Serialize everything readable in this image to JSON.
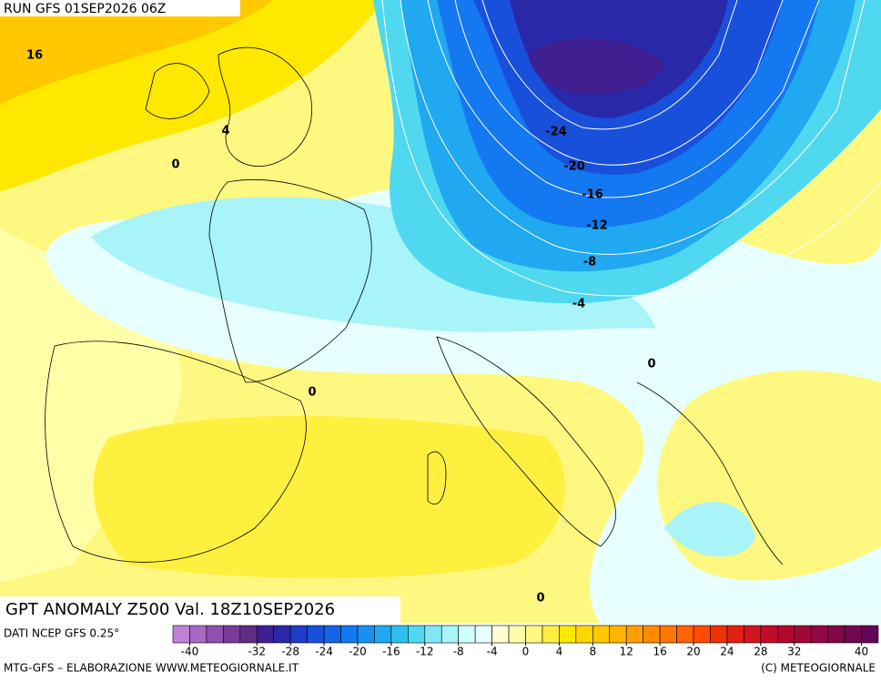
{
  "header": {
    "run": "RUN GFS 01SEP2026 06Z"
  },
  "map": {
    "title": "GPT ANOMALY Z500 Val. 18Z10SEP2026",
    "contour_labels": [
      "16",
      "4",
      "0",
      "-24",
      "-20",
      "-16",
      "-12",
      "-8",
      "-4",
      "0",
      "0",
      "0"
    ]
  },
  "colorbar": {
    "source": "DATI NCEP GFS 0.25°",
    "range": [
      -42,
      42
    ],
    "colors": [
      "#c080d8",
      "#a868c8",
      "#9050b0",
      "#783c98",
      "#602c88",
      "#402090",
      "#2828a8",
      "#1e3cc8",
      "#1850dc",
      "#1464e8",
      "#1478f0",
      "#1890f0",
      "#20a8f0",
      "#30c0f0",
      "#50d8f0",
      "#80e8f4",
      "#a8f4f8",
      "#d0ffff",
      "#e8ffff",
      "#ffffd0",
      "#ffffa8",
      "#fff880",
      "#fff040",
      "#ffe800",
      "#ffd800",
      "#ffc800",
      "#ffb400",
      "#ffa000",
      "#ff8c00",
      "#ff7800",
      "#ff6400",
      "#ff4c00",
      "#f03200",
      "#e02010",
      "#d01420",
      "#c00c28",
      "#b00830",
      "#a00838",
      "#900840",
      "#800848",
      "#700850",
      "#600858"
    ],
    "ticks": [
      -40,
      -32,
      -28,
      -24,
      -20,
      -16,
      -12,
      -8,
      -4,
      0,
      4,
      8,
      12,
      16,
      20,
      24,
      28,
      32,
      40
    ]
  },
  "footer": {
    "left": "MTG-GFS – ELABORAZIONE WWW.METEOGIORNALE.IT",
    "right": "(C) METEOGIORNALE"
  }
}
